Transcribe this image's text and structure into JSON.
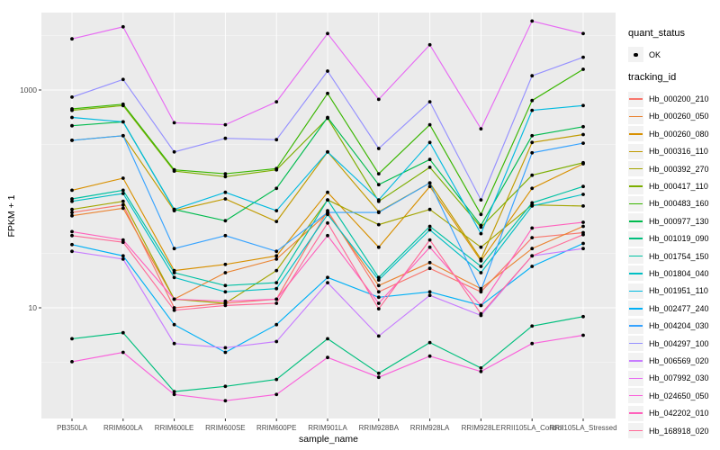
{
  "chart_data": {
    "type": "line",
    "title": "",
    "xlabel": "sample_name",
    "ylabel": "FPKM + 1",
    "y_scale": "log10",
    "y_axis_ticks": [
      "1000",
      "10"
    ],
    "y_tick_values": [
      1000,
      10
    ],
    "ylim": [
      0.95,
      5200
    ],
    "grid": "on",
    "legend_position": "right",
    "panel_bg": "#EBEBEB",
    "grid_color": "#FFFFFF",
    "point_color": "#000000",
    "axis_text_color": "#4D4D4D",
    "categories": [
      "PB350LA",
      "RRIM600LA",
      "RRIM600LE",
      "RRIM600SE",
      "RRIM600PE",
      "RRIM901LA",
      "RRIM928BA",
      "RRIM928LA",
      "RRIM928LE",
      "RRII105LA_Control",
      "RRII105LA_Stressed"
    ],
    "legend": {
      "quant_status": {
        "title": "quant_status",
        "items": [
          {
            "label": "OK",
            "symbol": "point",
            "color": "#000000"
          }
        ]
      },
      "tracking_id": {
        "title": "tracking_id"
      }
    },
    "series": [
      {
        "name": "Hb_000200_210",
        "color": "#F8766D",
        "values": [
          75,
          88,
          10,
          11,
          12,
          78,
          14,
          23,
          14,
          44,
          49
        ]
      },
      {
        "name": "Hb_000260_050",
        "color": "#EA8331",
        "values": [
          70,
          82,
          12,
          21,
          28,
          74,
          16,
          26,
          15,
          35,
          56
        ]
      },
      {
        "name": "Hb_000260_080",
        "color": "#D89000",
        "values": [
          120,
          155,
          22,
          25,
          30,
          115,
          36,
          130,
          27,
          125,
          210
        ]
      },
      {
        "name": "Hb_000316_110",
        "color": "#C09B00",
        "values": [
          345,
          380,
          78,
          100,
          62,
          270,
          76,
          140,
          28,
          330,
          390
        ]
      },
      {
        "name": "Hb_000392_270",
        "color": "#A3A500",
        "values": [
          80,
          95,
          12,
          11,
          22,
          98,
          58,
          80,
          36,
          88,
          86
        ]
      },
      {
        "name": "Hb_000417_110",
        "color": "#7CAE00",
        "values": [
          650,
          720,
          180,
          160,
          185,
          550,
          95,
          195,
          55,
          165,
          215
        ]
      },
      {
        "name": "Hb_000483_160",
        "color": "#39B600",
        "values": [
          670,
          740,
          185,
          170,
          190,
          930,
          170,
          480,
          72,
          800,
          1550
        ]
      },
      {
        "name": "Hb_000977_130",
        "color": "#00BB4E",
        "values": [
          470,
          510,
          80,
          63,
          125,
          560,
          135,
          230,
          57,
          380,
          460
        ]
      },
      {
        "name": "Hb_001019_090",
        "color": "#00BF7D",
        "values": [
          5.2,
          5.9,
          1.7,
          1.9,
          2.2,
          5.2,
          2.5,
          4.8,
          2.8,
          6.8,
          8.3
        ]
      },
      {
        "name": "Hb_001754_150",
        "color": "#00C1A3",
        "values": [
          100,
          120,
          21,
          16,
          17,
          98,
          19,
          56,
          24,
          92,
          130
        ]
      },
      {
        "name": "Hb_001804_040",
        "color": "#00BFC4",
        "values": [
          95,
          112,
          19,
          14,
          15,
          72,
          18,
          52,
          21,
          86,
          110
        ]
      },
      {
        "name": "Hb_001951_110",
        "color": "#00BAE0",
        "values": [
          560,
          510,
          80,
          115,
          78,
          270,
          98,
          330,
          48,
          650,
          720
        ]
      },
      {
        "name": "Hb_002477_240",
        "color": "#00B0F6",
        "values": [
          38,
          30,
          7,
          3.9,
          7,
          19,
          12.5,
          14,
          10.5,
          24,
          39
        ]
      },
      {
        "name": "Hb_004204_030",
        "color": "#35A2FF",
        "values": [
          345,
          380,
          35,
          46,
          33,
          75,
          75,
          140,
          14.5,
          265,
          325
        ]
      },
      {
        "name": "Hb_004297_100",
        "color": "#9590FF",
        "values": [
          860,
          1250,
          270,
          360,
          350,
          1490,
          290,
          780,
          98,
          1350,
          2000
        ]
      },
      {
        "name": "Hb_006569_020",
        "color": "#C77CFF",
        "values": [
          33,
          28,
          4.7,
          4.3,
          4.9,
          17,
          5.5,
          13,
          8.5,
          30,
          35
        ]
      },
      {
        "name": "Hb_007992_030",
        "color": "#E76BF3",
        "values": [
          2950,
          3800,
          500,
          480,
          780,
          3300,
          820,
          2600,
          440,
          4300,
          3300
        ]
      },
      {
        "name": "Hb_024650_050",
        "color": "#FA62DB",
        "values": [
          3.2,
          3.9,
          1.6,
          1.4,
          1.6,
          3.5,
          2.3,
          3.6,
          2.6,
          4.7,
          5.6
        ]
      },
      {
        "name": "Hb_042202_010",
        "color": "#FF62BC",
        "values": [
          50,
          42,
          12,
          11.5,
          12,
          46,
          11,
          36,
          10.5,
          54,
          61
        ]
      },
      {
        "name": "Hb_168918_020",
        "color": "#FF6A98",
        "values": [
          46,
          40,
          9.5,
          10.5,
          11,
          60,
          9.8,
          42,
          8.8,
          30,
          47
        ]
      }
    ]
  }
}
